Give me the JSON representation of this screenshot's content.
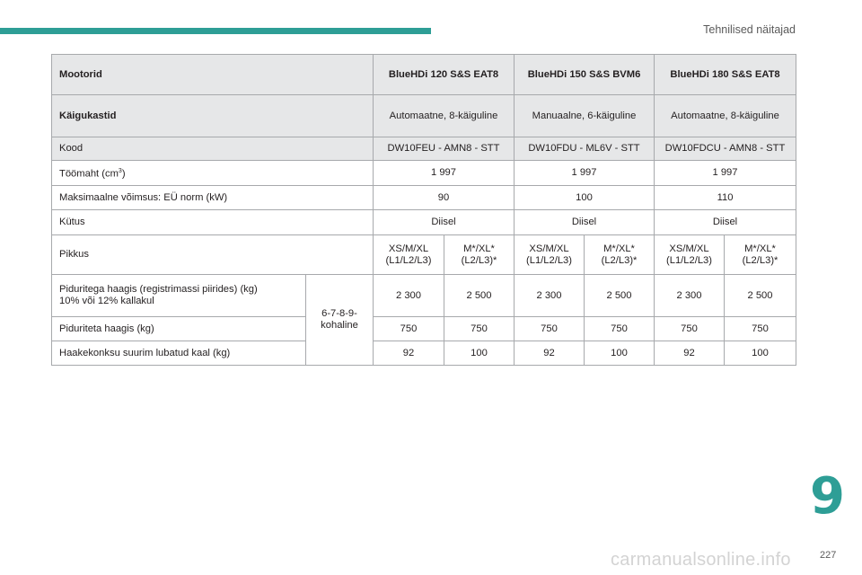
{
  "header": {
    "section_title": "Tehnilised näitajad"
  },
  "table": {
    "engine_row": {
      "label": "Mootorid",
      "values": [
        "BlueHDi 120 S&S EAT8",
        "BlueHDi 150 S&S BVM6",
        "BlueHDi 180 S&S EAT8"
      ]
    },
    "gearbox_row": {
      "label": "Käigukastid",
      "values": [
        "Automaatne, 8-käiguline",
        "Manuaalne, 6-käiguline",
        "Automaatne, 8-käiguline"
      ]
    },
    "code_row": {
      "label": "Kood",
      "values": [
        "DW10FEU - AMN8 - STT",
        "DW10FDU - ML6V - STT",
        "DW10FDCU - AMN8 - STT"
      ]
    },
    "displacement_row": {
      "label": "Töömaht (cm",
      "label_sup": "3",
      "label_end": ")",
      "values": [
        "1 997",
        "1 997",
        "1 997"
      ]
    },
    "power_row": {
      "label": "Maksimaalne võimsus: EÜ norm (kW)",
      "values": [
        "90",
        "100",
        "110"
      ]
    },
    "fuel_row": {
      "label": "Kütus",
      "values": [
        "Diisel",
        "Diisel",
        "Diisel"
      ]
    },
    "length_row": {
      "label": "Pikkus",
      "values": [
        "XS/M/XL\n(L1/L2/L3)",
        "M*/XL*\n(L2/L3)*",
        "XS/M/XL\n(L1/L2/L3)",
        "M*/XL*\n(L2/L3)*",
        "XS/M/XL\n(L1/L2/L3)",
        "M*/XL*\n(L2/L3)*"
      ]
    },
    "braked_trailer_row": {
      "label": "Piduritega haagis (registrimassi piirides) (kg)\n10% või 12% kallakul",
      "values": [
        "2 300",
        "2 500",
        "2 300",
        "2 500",
        "2 300",
        "2 500"
      ]
    },
    "gradient_note": "6-7-8-9-\nkohaline",
    "unbraked_trailer_row": {
      "label": "Piduriteta haagis (kg)",
      "values": [
        "750",
        "750",
        "750",
        "750",
        "750",
        "750"
      ]
    },
    "towball_row": {
      "label": "Haakekonksu suurim lubatud kaal (kg)",
      "values": [
        "92",
        "100",
        "92",
        "100",
        "92",
        "100"
      ]
    }
  },
  "chapter_number": "9",
  "page_number": "227",
  "watermark": "carmanualsonline.info",
  "colors": {
    "accent": "#2e9e96",
    "header_fill": "#e6e7e8",
    "border": "#a7a9ac"
  }
}
